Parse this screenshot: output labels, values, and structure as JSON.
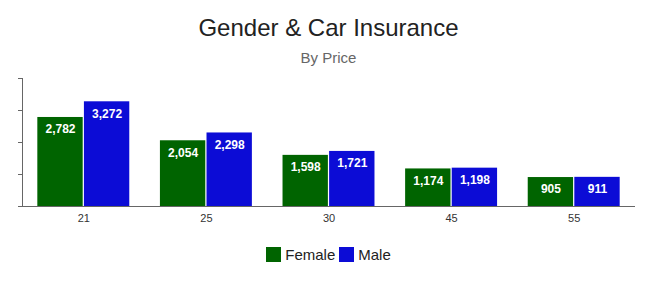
{
  "chart_data": {
    "type": "bar",
    "title": "Gender & Car Insurance",
    "subtitle": "By Price",
    "categories": [
      "21",
      "25",
      "30",
      "45",
      "55"
    ],
    "series": [
      {
        "name": "Female",
        "color": "#006400",
        "values": [
          2782,
          2054,
          1598,
          1174,
          905
        ],
        "value_labels": [
          "2,782",
          "2,054",
          "1,598",
          "1,174",
          "905"
        ]
      },
      {
        "name": "Male",
        "color": "#0c0cd6",
        "values": [
          3272,
          2298,
          1721,
          1198,
          911
        ],
        "value_labels": [
          "3,272",
          "2,298",
          "1,721",
          "1,198",
          "911"
        ]
      }
    ],
    "ylim": [
      0,
      4000
    ],
    "yticks": [
      0,
      1000,
      2000,
      3000,
      4000
    ],
    "data_labels": true,
    "tick_labels": "x",
    "legend": "bottom"
  }
}
